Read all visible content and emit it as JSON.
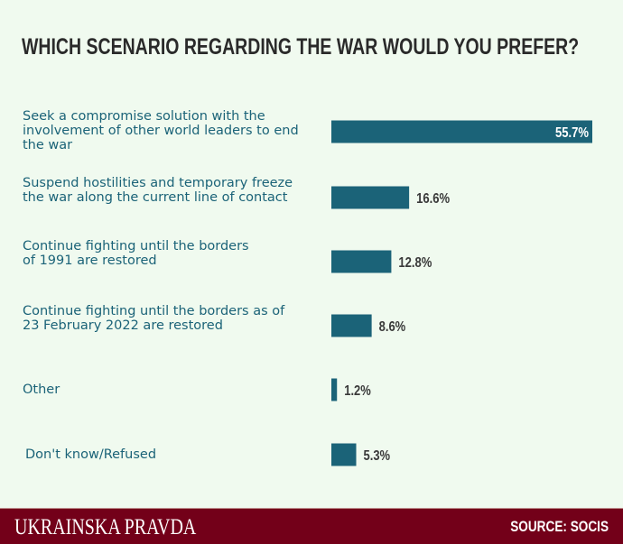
{
  "chart_data": {
    "type": "bar",
    "orientation": "horizontal",
    "title": "WHICH SCENARIO REGARDING THE WAR WOULD YOU PREFER?",
    "categories": [
      "Seek a compromise solution with the involvement of other world leaders to end the war",
      "Suspend hostilities and temporary freeze the war along the current line of contact",
      "Continue fighting until the borders of 1991 are restored",
      "Continue fighting until the borders as of 23 February 2022 are restored",
      "Other",
      "Don't know/Refused"
    ],
    "values": [
      55.7,
      16.6,
      12.8,
      8.6,
      1.2,
      5.3
    ],
    "value_labels": [
      "55.7%",
      "16.6%",
      "12.8%",
      "8.6%",
      "1.2%",
      "5.3%"
    ],
    "xlabel": "",
    "ylabel": "",
    "xlim": [
      0,
      55.7
    ],
    "bar_color": "#1b6378"
  },
  "footer": {
    "brand": "UKRAINSKA PRAVDA",
    "source": "SOURCE: SOCIS"
  }
}
